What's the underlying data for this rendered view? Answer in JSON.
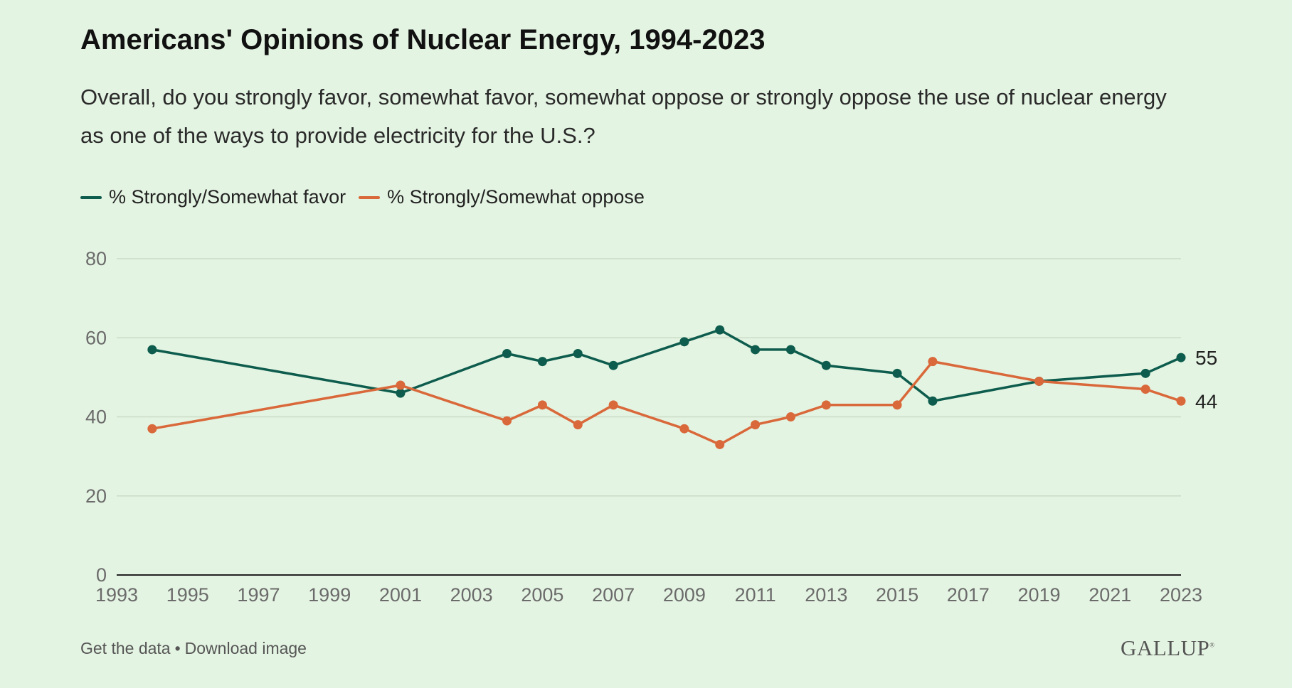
{
  "title": "Americans' Opinions of Nuclear Energy, 1994-2023",
  "subtitle": "Overall, do you strongly favor, somewhat favor, somewhat oppose or strongly oppose the use of nuclear energy as one of the ways to provide electricity for the U.S.?",
  "footer": {
    "get_data": "Get the data",
    "separator": "•",
    "download": "Download image"
  },
  "logo": "GALLUP",
  "colors": {
    "favor": "#0d5c4d",
    "oppose": "#d9683a",
    "grid": "#c9dcc6",
    "axis": "#222222",
    "tick_text": "#6b6b6b"
  },
  "chart_data": {
    "type": "line",
    "title": "Americans' Opinions of Nuclear Energy, 1994-2023",
    "xlabel": "",
    "ylabel": "",
    "xlim": [
      1993,
      2023
    ],
    "ylim": [
      0,
      80
    ],
    "x_ticks": [
      "1993",
      "1995",
      "1997",
      "1999",
      "2001",
      "2003",
      "2005",
      "2007",
      "2009",
      "2011",
      "2013",
      "2015",
      "2017",
      "2019",
      "2021",
      "2023"
    ],
    "y_ticks": [
      "0",
      "20",
      "40",
      "60",
      "80"
    ],
    "grid": true,
    "legend_position": "top-left",
    "series": [
      {
        "name": "% Strongly/Somewhat favor",
        "color": "#0d5c4d",
        "end_label": "55",
        "points": [
          [
            1994,
            57
          ],
          [
            2001,
            46
          ],
          [
            2004,
            56
          ],
          [
            2005,
            54
          ],
          [
            2006,
            56
          ],
          [
            2007,
            53
          ],
          [
            2009,
            59
          ],
          [
            2010,
            62
          ],
          [
            2011,
            57
          ],
          [
            2012,
            57
          ],
          [
            2013,
            53
          ],
          [
            2015,
            51
          ],
          [
            2016,
            44
          ],
          [
            2019,
            49
          ],
          [
            2022,
            51
          ],
          [
            2023,
            55
          ]
        ]
      },
      {
        "name": "% Strongly/Somewhat oppose",
        "color": "#d9683a",
        "end_label": "44",
        "points": [
          [
            1994,
            37
          ],
          [
            2001,
            48
          ],
          [
            2004,
            39
          ],
          [
            2005,
            43
          ],
          [
            2006,
            38
          ],
          [
            2007,
            43
          ],
          [
            2009,
            37
          ],
          [
            2010,
            33
          ],
          [
            2011,
            38
          ],
          [
            2012,
            40
          ],
          [
            2013,
            43
          ],
          [
            2015,
            43
          ],
          [
            2016,
            54
          ],
          [
            2019,
            49
          ],
          [
            2022,
            47
          ],
          [
            2023,
            44
          ]
        ]
      }
    ]
  }
}
